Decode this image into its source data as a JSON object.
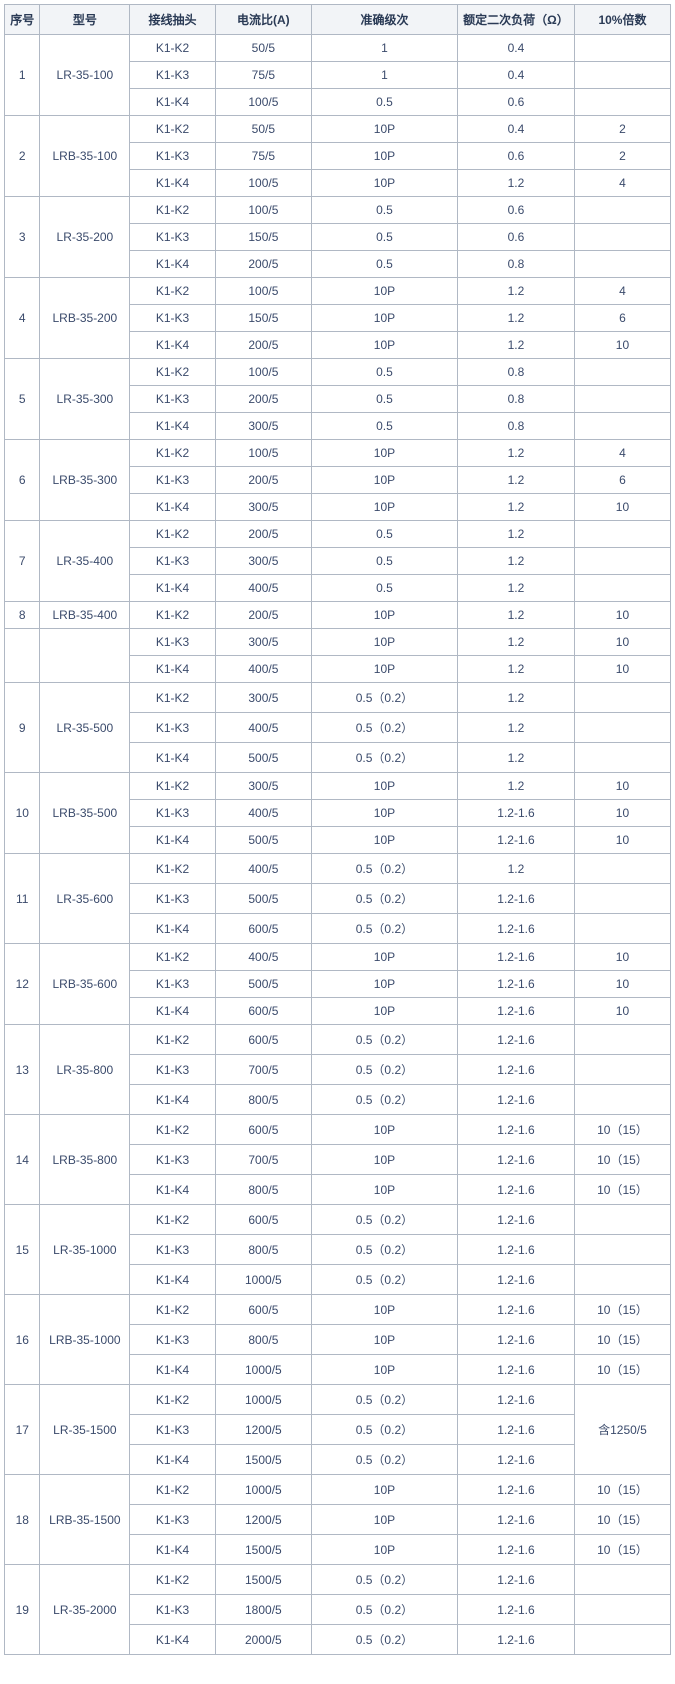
{
  "columns": [
    "序号",
    "型号",
    "接线抽头",
    "电流比(A)",
    "准确级次",
    "额定二次负荷（Ω）",
    "10%倍数"
  ],
  "groups": [
    {
      "seq": "1",
      "model": "LR-35-100",
      "rows": [
        {
          "tap": "K1-K2",
          "ratio": "50/5",
          "acc": "1",
          "load": "0.4",
          "pct": ""
        },
        {
          "tap": "K1-K3",
          "ratio": "75/5",
          "acc": "1",
          "load": "0.4",
          "pct": ""
        },
        {
          "tap": "K1-K4",
          "ratio": "100/5",
          "acc": "0.5",
          "load": "0.6",
          "pct": ""
        }
      ]
    },
    {
      "seq": "2",
      "model": "LRB-35-100",
      "rows": [
        {
          "tap": "K1-K2",
          "ratio": "50/5",
          "acc": "10P",
          "load": "0.4",
          "pct": "2"
        },
        {
          "tap": "K1-K3",
          "ratio": "75/5",
          "acc": "10P",
          "load": "0.6",
          "pct": "2"
        },
        {
          "tap": "K1-K4",
          "ratio": "100/5",
          "acc": "10P",
          "load": "1.2",
          "pct": "4"
        }
      ]
    },
    {
      "seq": "3",
      "model": "LR-35-200",
      "rows": [
        {
          "tap": "K1-K2",
          "ratio": "100/5",
          "acc": "0.5",
          "load": "0.6",
          "pct": ""
        },
        {
          "tap": "K1-K3",
          "ratio": "150/5",
          "acc": "0.5",
          "load": "0.6",
          "pct": ""
        },
        {
          "tap": "K1-K4",
          "ratio": "200/5",
          "acc": "0.5",
          "load": "0.8",
          "pct": ""
        }
      ]
    },
    {
      "seq": "4",
      "model": "LRB-35-200",
      "rows": [
        {
          "tap": "K1-K2",
          "ratio": "100/5",
          "acc": "10P",
          "load": "1.2",
          "pct": "4"
        },
        {
          "tap": "K1-K3",
          "ratio": "150/5",
          "acc": "10P",
          "load": "1.2",
          "pct": "6"
        },
        {
          "tap": "K1-K4",
          "ratio": "200/5",
          "acc": "10P",
          "load": "1.2",
          "pct": "10"
        }
      ]
    },
    {
      "seq": "5",
      "model": "LR-35-300",
      "rows": [
        {
          "tap": "K1-K2",
          "ratio": "100/5",
          "acc": "0.5",
          "load": "0.8",
          "pct": ""
        },
        {
          "tap": "K1-K3",
          "ratio": "200/5",
          "acc": "0.5",
          "load": "0.8",
          "pct": ""
        },
        {
          "tap": "K1-K4",
          "ratio": "300/5",
          "acc": "0.5",
          "load": "0.8",
          "pct": ""
        }
      ]
    },
    {
      "seq": "6",
      "model": "LRB-35-300",
      "rows": [
        {
          "tap": "K1-K2",
          "ratio": "100/5",
          "acc": "10P",
          "load": "1.2",
          "pct": "4"
        },
        {
          "tap": "K1-K3",
          "ratio": "200/5",
          "acc": "10P",
          "load": "1.2",
          "pct": "6"
        },
        {
          "tap": "K1-K4",
          "ratio": "300/5",
          "acc": "10P",
          "load": "1.2",
          "pct": "10"
        }
      ]
    },
    {
      "seq": "7",
      "model": "LR-35-400",
      "rows": [
        {
          "tap": "K1-K2",
          "ratio": "200/5",
          "acc": "0.5",
          "load": "1.2",
          "pct": ""
        },
        {
          "tap": "K1-K3",
          "ratio": "300/5",
          "acc": "0.5",
          "load": "1.2",
          "pct": ""
        },
        {
          "tap": "K1-K4",
          "ratio": "400/5",
          "acc": "0.5",
          "load": "1.2",
          "pct": ""
        }
      ]
    },
    {
      "seq": "8",
      "model": "LRB-35-400",
      "rows": [
        {
          "tap": "K1-K2",
          "ratio": "200/5",
          "acc": "10P",
          "load": "1.2",
          "pct": "10"
        }
      ]
    },
    {
      "seq": "",
      "model": "",
      "rows": [
        {
          "tap": "K1-K3",
          "ratio": "300/5",
          "acc": "10P",
          "load": "1.2",
          "pct": "10"
        },
        {
          "tap": "K1-K4",
          "ratio": "400/5",
          "acc": "10P",
          "load": "1.2",
          "pct": "10"
        }
      ]
    },
    {
      "seq": "9",
      "model": "LR-35-500",
      "rows": [
        {
          "tap": "K1-K2",
          "ratio": "300/5",
          "acc": "0.5（0.2）",
          "load": "1.2",
          "pct": ""
        },
        {
          "tap": "K1-K3",
          "ratio": "400/5",
          "acc": "0.5（0.2）",
          "load": "1.2",
          "pct": ""
        },
        {
          "tap": "K1-K4",
          "ratio": "500/5",
          "acc": "0.5（0.2）",
          "load": "1.2",
          "pct": ""
        }
      ]
    },
    {
      "seq": "10",
      "model": "LRB-35-500",
      "rows": [
        {
          "tap": "K1-K2",
          "ratio": "300/5",
          "acc": "10P",
          "load": "1.2",
          "pct": "10"
        },
        {
          "tap": "K1-K3",
          "ratio": "400/5",
          "acc": "10P",
          "load": "1.2-1.6",
          "pct": "10"
        },
        {
          "tap": "K1-K4",
          "ratio": "500/5",
          "acc": "10P",
          "load": "1.2-1.6",
          "pct": "10"
        }
      ]
    },
    {
      "seq": "11",
      "model": "LR-35-600",
      "rows": [
        {
          "tap": "K1-K2",
          "ratio": "400/5",
          "acc": "0.5（0.2）",
          "load": "1.2",
          "pct": ""
        },
        {
          "tap": "K1-K3",
          "ratio": "500/5",
          "acc": "0.5（0.2）",
          "load": "1.2-1.6",
          "pct": ""
        },
        {
          "tap": "K1-K4",
          "ratio": "600/5",
          "acc": "0.5（0.2）",
          "load": "1.2-1.6",
          "pct": ""
        }
      ]
    },
    {
      "seq": "12",
      "model": "LRB-35-600",
      "rows": [
        {
          "tap": "K1-K2",
          "ratio": "400/5",
          "acc": "10P",
          "load": "1.2-1.6",
          "pct": "10"
        },
        {
          "tap": "K1-K3",
          "ratio": "500/5",
          "acc": "10P",
          "load": "1.2-1.6",
          "pct": "10"
        },
        {
          "tap": "K1-K4",
          "ratio": "600/5",
          "acc": "10P",
          "load": "1.2-1.6",
          "pct": "10"
        }
      ]
    },
    {
      "seq": "13",
      "model": "LR-35-800",
      "rows": [
        {
          "tap": "K1-K2",
          "ratio": "600/5",
          "acc": "0.5（0.2）",
          "load": "1.2-1.6",
          "pct": ""
        },
        {
          "tap": "K1-K3",
          "ratio": "700/5",
          "acc": "0.5（0.2）",
          "load": "1.2-1.6",
          "pct": ""
        },
        {
          "tap": "K1-K4",
          "ratio": "800/5",
          "acc": "0.5（0.2）",
          "load": "1.2-1.6",
          "pct": ""
        }
      ]
    },
    {
      "seq": "14",
      "model": "LRB-35-800",
      "rows": [
        {
          "tap": "K1-K2",
          "ratio": "600/5",
          "acc": "10P",
          "load": "1.2-1.6",
          "pct": "10（15）"
        },
        {
          "tap": "K1-K3",
          "ratio": "700/5",
          "acc": "10P",
          "load": "1.2-1.6",
          "pct": "10（15）"
        },
        {
          "tap": "K1-K4",
          "ratio": "800/5",
          "acc": "10P",
          "load": "1.2-1.6",
          "pct": "10（15）"
        }
      ]
    },
    {
      "seq": "15",
      "model": "LR-35-1000",
      "rows": [
        {
          "tap": "K1-K2",
          "ratio": "600/5",
          "acc": "0.5（0.2）",
          "load": "1.2-1.6",
          "pct": ""
        },
        {
          "tap": "K1-K3",
          "ratio": "800/5",
          "acc": "0.5（0.2）",
          "load": "1.2-1.6",
          "pct": ""
        },
        {
          "tap": "K1-K4",
          "ratio": "1000/5",
          "acc": "0.5（0.2）",
          "load": "1.2-1.6",
          "pct": ""
        }
      ]
    },
    {
      "seq": "16",
      "model": "LRB-35-1000",
      "rows": [
        {
          "tap": "K1-K2",
          "ratio": "600/5",
          "acc": "10P",
          "load": "1.2-1.6",
          "pct": "10（15）"
        },
        {
          "tap": "K1-K3",
          "ratio": "800/5",
          "acc": "10P",
          "load": "1.2-1.6",
          "pct": "10（15）"
        },
        {
          "tap": "K1-K4",
          "ratio": "1000/5",
          "acc": "10P",
          "load": "1.2-1.6",
          "pct": "10（15）"
        }
      ]
    },
    {
      "seq": "17",
      "model": "LR-35-1500",
      "pct_merged": "含1250/5",
      "rows": [
        {
          "tap": "K1-K2",
          "ratio": "1000/5",
          "acc": "0.5（0.2）",
          "load": "1.2-1.6"
        },
        {
          "tap": "K1-K3",
          "ratio": "1200/5",
          "acc": "0.5（0.2）",
          "load": "1.2-1.6"
        },
        {
          "tap": "K1-K4",
          "ratio": "1500/5",
          "acc": "0.5（0.2）",
          "load": "1.2-1.6"
        }
      ]
    },
    {
      "seq": "18",
      "model": "LRB-35-1500",
      "rows": [
        {
          "tap": "K1-K2",
          "ratio": "1000/5",
          "acc": "10P",
          "load": "1.2-1.6",
          "pct": "10（15）"
        },
        {
          "tap": "K1-K3",
          "ratio": "1200/5",
          "acc": "10P",
          "load": "1.2-1.6",
          "pct": "10（15）"
        },
        {
          "tap": "K1-K4",
          "ratio": "1500/5",
          "acc": "10P",
          "load": "1.2-1.6",
          "pct": "10（15）"
        }
      ]
    },
    {
      "seq": "19",
      "model": "LR-35-2000",
      "rows": [
        {
          "tap": "K1-K2",
          "ratio": "1500/5",
          "acc": "0.5（0.2）",
          "load": "1.2-1.6",
          "pct": ""
        },
        {
          "tap": "K1-K3",
          "ratio": "1800/5",
          "acc": "0.5（0.2）",
          "load": "1.2-1.6",
          "pct": ""
        },
        {
          "tap": "K1-K4",
          "ratio": "2000/5",
          "acc": "0.5（0.2）",
          "load": "1.2-1.6",
          "pct": ""
        }
      ]
    }
  ]
}
